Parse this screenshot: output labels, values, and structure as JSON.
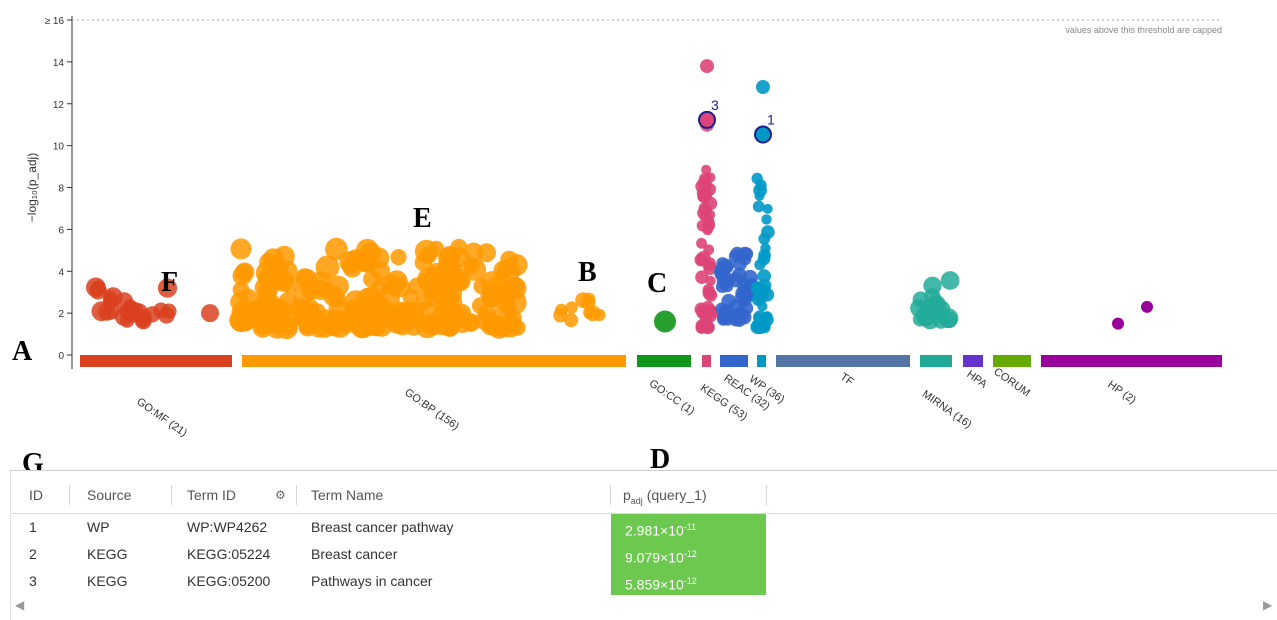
{
  "chart_data": {
    "type": "scatter",
    "title": "",
    "ylabel": "−log₁₀(p_adj)",
    "ylim": [
      0,
      16
    ],
    "yticks": [
      0,
      2,
      4,
      6,
      8,
      10,
      12,
      14,
      16
    ],
    "ytick_labels": [
      "0",
      "2",
      "4",
      "6",
      "8",
      "10",
      "12",
      "14",
      "≥ 16"
    ],
    "threshold_label": "values above this threshold are capped",
    "categories": [
      {
        "label": "GO:MF (21)",
        "color": "#d9411e"
      },
      {
        "label": "GO:BP (156)",
        "color": "#ff9900"
      },
      {
        "label": "GO:CC (1)",
        "color": "#109618"
      },
      {
        "label": "KEGG (53)",
        "color": "#dd4477"
      },
      {
        "label": "REAC (32)",
        "color": "#3366cc"
      },
      {
        "label": "WP (36)",
        "color": "#0099c6"
      },
      {
        "label": "TF",
        "color": "#5574a6"
      },
      {
        "label": "MIRNA (16)",
        "color": "#22aa99"
      },
      {
        "label": "HPA",
        "color": "#6633cc"
      },
      {
        "label": "CORUM",
        "color": "#66aa00"
      },
      {
        "label": "HP (2)",
        "color": "#990099"
      }
    ],
    "highlighted": [
      {
        "label": "1",
        "source": "WP",
        "value": 10.53
      },
      {
        "label": "3",
        "source": "KEGG",
        "value": 11.23
      }
    ]
  },
  "panel_letters": {
    "a": "A",
    "b": "B",
    "c": "C",
    "d": "D",
    "e": "E",
    "f": "F",
    "g": "G"
  },
  "table": {
    "headers": {
      "id": "ID",
      "source": "Source",
      "term_id": "Term ID",
      "term_name": "Term Name",
      "padj": "p",
      "padj_sub": "adj",
      "padj_rest": " (query_1)"
    },
    "rows": [
      {
        "id": "1",
        "source": "WP",
        "term_id": "WP:WP4262",
        "term_name": "Breast cancer pathway",
        "padj_base": "2.981×10",
        "padj_exp": "-11"
      },
      {
        "id": "2",
        "source": "KEGG",
        "term_id": "KEGG:05224",
        "term_name": "Breast cancer",
        "padj_base": "9.079×10",
        "padj_exp": "-12"
      },
      {
        "id": "3",
        "source": "KEGG",
        "term_id": "KEGG:05200",
        "term_name": "Pathways in cancer",
        "padj_base": "5.859×10",
        "padj_exp": "-12"
      }
    ],
    "pval_color": "#6cc84f"
  }
}
